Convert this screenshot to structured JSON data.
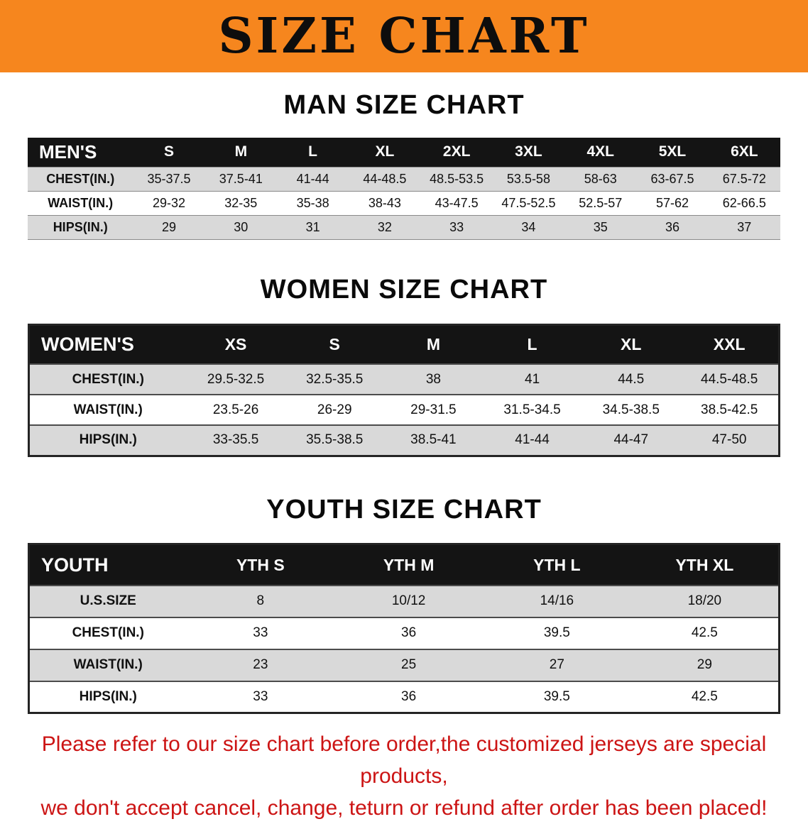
{
  "banner": {
    "title": "SIZE CHART"
  },
  "colors": {
    "banner_orange": "#f6861e",
    "header_black": "#141414",
    "shaded_row": "#d9d9d9",
    "disclaimer_red": "#cc1414"
  },
  "sections": [
    {
      "title": "MAN SIZE CHART",
      "table": {
        "header_label": "MEN'S",
        "columns": [
          "S",
          "M",
          "L",
          "XL",
          "2XL",
          "3XL",
          "4XL",
          "5XL",
          "6XL"
        ],
        "rows": [
          {
            "label": "CHEST(IN.)",
            "values": [
              "35-37.5",
              "37.5-41",
              "41-44",
              "44-48.5",
              "48.5-53.5",
              "53.5-58",
              "58-63",
              "63-67.5",
              "67.5-72"
            ]
          },
          {
            "label": "WAIST(IN.)",
            "values": [
              "29-32",
              "32-35",
              "35-38",
              "38-43",
              "43-47.5",
              "47.5-52.5",
              "52.5-57",
              "57-62",
              "62-66.5"
            ]
          },
          {
            "label": "HIPS(IN.)",
            "values": [
              "29",
              "30",
              "31",
              "32",
              "33",
              "34",
              "35",
              "36",
              "37"
            ]
          }
        ]
      }
    },
    {
      "title": "WOMEN SIZE CHART",
      "table": {
        "header_label": "WOMEN'S",
        "columns": [
          "XS",
          "S",
          "M",
          "L",
          "XL",
          "XXL"
        ],
        "rows": [
          {
            "label": "CHEST(IN.)",
            "values": [
              "29.5-32.5",
              "32.5-35.5",
              "38",
              "41",
              "44.5",
              "44.5-48.5"
            ]
          },
          {
            "label": "WAIST(IN.)",
            "values": [
              "23.5-26",
              "26-29",
              "29-31.5",
              "31.5-34.5",
              "34.5-38.5",
              "38.5-42.5"
            ]
          },
          {
            "label": "HIPS(IN.)",
            "values": [
              "33-35.5",
              "35.5-38.5",
              "38.5-41",
              "41-44",
              "44-47",
              "47-50"
            ]
          }
        ]
      }
    },
    {
      "title": "YOUTH SIZE CHART",
      "table": {
        "header_label": "YOUTH",
        "columns": [
          "YTH S",
          "YTH M",
          "YTH L",
          "YTH XL"
        ],
        "rows": [
          {
            "label": "U.S.SIZE",
            "values": [
              "8",
              "10/12",
              "14/16",
              "18/20"
            ]
          },
          {
            "label": "CHEST(IN.)",
            "values": [
              "33",
              "36",
              "39.5",
              "42.5"
            ]
          },
          {
            "label": "WAIST(IN.)",
            "values": [
              "23",
              "25",
              "27",
              "29"
            ]
          },
          {
            "label": "HIPS(IN.)",
            "values": [
              "33",
              "36",
              "39.5",
              "42.5"
            ]
          }
        ]
      }
    }
  ],
  "disclaimer": {
    "line1": "Please refer to our size chart before order,the customized jerseys are special products,",
    "line2": "we don't accept cancel, change, teturn or refund after order has been placed!"
  }
}
